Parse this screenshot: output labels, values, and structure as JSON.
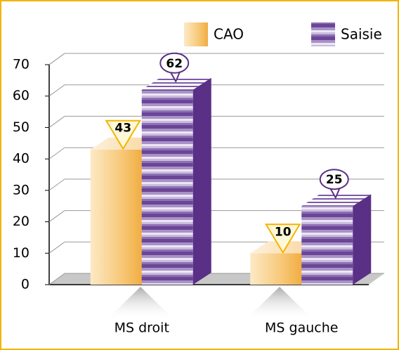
{
  "chart_data": {
    "type": "bar3d",
    "categories": [
      "MS droit",
      "MS gauche"
    ],
    "series": [
      {
        "name": "CAO",
        "color": "#f1ad42",
        "values": [
          43,
          10
        ]
      },
      {
        "name": "Saisie",
        "color": "#6b4596",
        "values": [
          62,
          25
        ]
      }
    ],
    "ylim": [
      0,
      70
    ],
    "yticks": [
      0,
      10,
      20,
      30,
      40,
      50,
      60,
      70
    ],
    "grid": true,
    "legend": "top-right"
  }
}
